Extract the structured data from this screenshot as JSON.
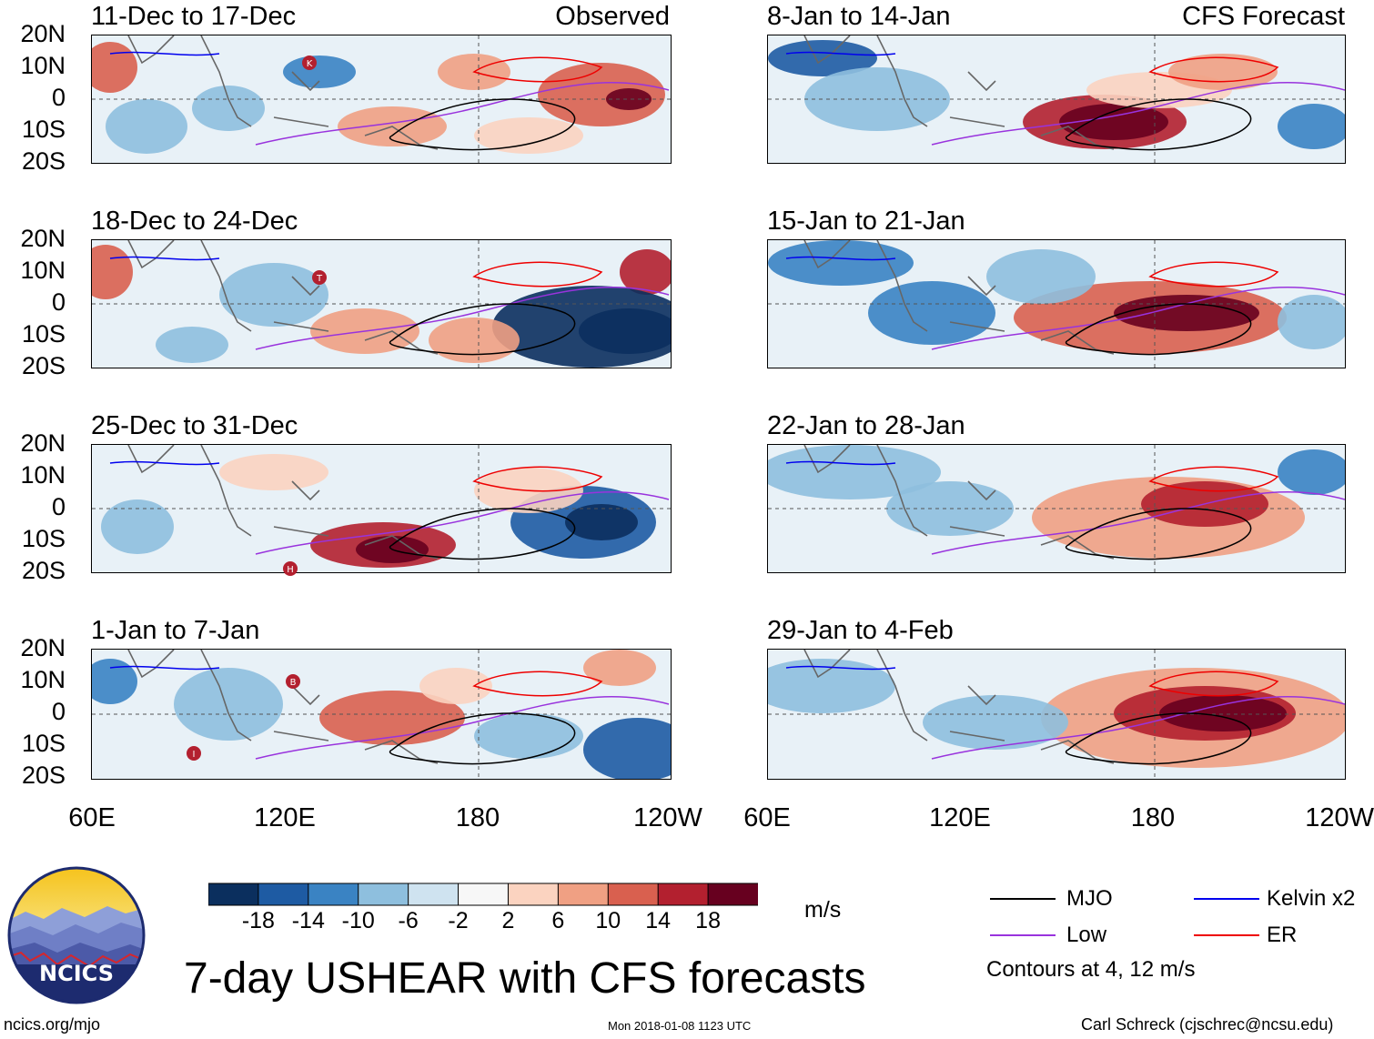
{
  "header": {
    "observed_tag": "Observed",
    "forecast_tag": "CFS Forecast"
  },
  "axes": {
    "lat_ticks": [
      "20N",
      "10N",
      "0",
      "10S",
      "20S"
    ],
    "lon_ticks": [
      "60E",
      "120E",
      "180",
      "120W"
    ]
  },
  "panels": {
    "observed": [
      {
        "title": "11-Dec to 17-Dec",
        "storms": [
          "K"
        ]
      },
      {
        "title": "18-Dec to 24-Dec",
        "storms": [
          "T"
        ]
      },
      {
        "title": "25-Dec to 31-Dec",
        "storms": [
          "H"
        ]
      },
      {
        "title": "1-Jan to 7-Jan",
        "storms": [
          "B",
          "I"
        ]
      }
    ],
    "forecast": [
      {
        "title": "8-Jan to 14-Jan"
      },
      {
        "title": "15-Jan to 21-Jan"
      },
      {
        "title": "22-Jan to 28-Jan"
      },
      {
        "title": "29-Jan to 4-Feb"
      }
    ]
  },
  "colorbar": {
    "labels": [
      "-18",
      "-14",
      "-10",
      "-6",
      "-2",
      "2",
      "6",
      "10",
      "14",
      "18"
    ],
    "colors": [
      "#0b2f5e",
      "#1e5ba3",
      "#3a83c3",
      "#8ebfde",
      "#cfe3f0",
      "#f7f7f7",
      "#fbd3c0",
      "#f0a083",
      "#d9604f",
      "#b3202f",
      "#67001f"
    ],
    "units": "m/s"
  },
  "legend": {
    "items": [
      {
        "label": "MJO",
        "color": "#000000"
      },
      {
        "label": "Kelvin x2",
        "color": "#0000ee"
      },
      {
        "label": "Low",
        "color": "#9933dd"
      },
      {
        "label": "ER",
        "color": "#ee0000"
      }
    ],
    "note": "Contours at 4, 12 m/s"
  },
  "footer": {
    "logo_text": "NCICS",
    "title": "7-day USHEAR with CFS forecasts",
    "website": "ncics.org/mjo",
    "timestamp": "Mon 2018-01-08 1123 UTC",
    "author": "Carl Schreck (cjschrec@ncsu.edu)"
  }
}
